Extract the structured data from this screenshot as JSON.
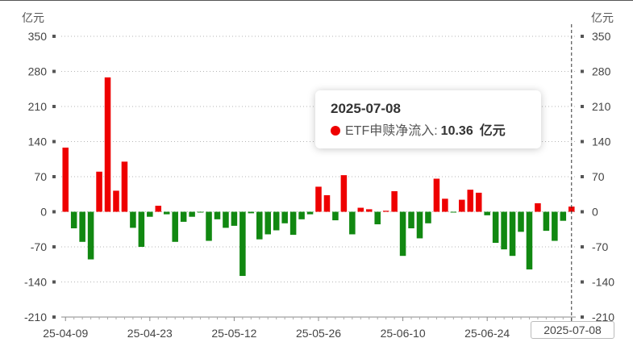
{
  "chart_data": {
    "type": "bar",
    "unit_left": "亿元",
    "unit_right": "亿元",
    "ylim": [
      -210,
      350
    ],
    "yticks": [
      "350",
      "280",
      "210",
      "140",
      "70",
      "0",
      "-70",
      "-140",
      "-210"
    ],
    "x_tick_labels": [
      "25-04-09",
      "25-04-23",
      "25-05-12",
      "25-05-26",
      "25-06-10",
      "25-06-24",
      "25-07-08"
    ],
    "values": [
      128,
      -33,
      -60,
      -95,
      80,
      268,
      42,
      100,
      -32,
      -70,
      -10,
      12,
      -5,
      -60,
      -20,
      -10,
      -1,
      -58,
      -15,
      -32,
      -28,
      -128,
      -3,
      -55,
      -45,
      -37,
      -23,
      -46,
      -15,
      -5,
      50,
      33,
      -17,
      73,
      -45,
      8,
      5,
      -25,
      2,
      41,
      -88,
      -33,
      -53,
      -23,
      66,
      26,
      -1,
      24,
      44,
      38,
      -7,
      -62,
      -75,
      -88,
      -40,
      -115,
      17,
      -38,
      -58,
      -18,
      10.36
    ],
    "colors": {
      "positive": "#ee0000",
      "negative": "#118811"
    },
    "grid": "dotted",
    "tooltip": {
      "date": "2025-07-08",
      "series_label": "ETF申赎净流入:",
      "value": "10.36",
      "unit": "亿元"
    },
    "x_pointer_label": "2025-07-08"
  }
}
